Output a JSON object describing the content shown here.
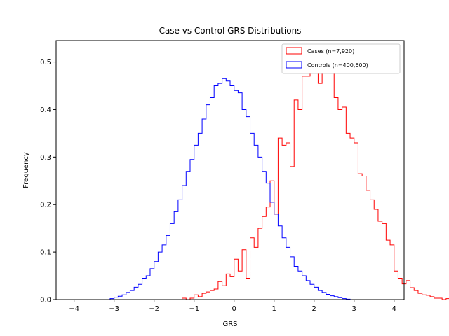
{
  "chart_data": {
    "type": "histogram",
    "title": "Case vs Control GRS Distributions",
    "xlabel": "GRS",
    "ylabel": "Frequency",
    "xlim": [
      -4.45,
      4.25
    ],
    "ylim": [
      0,
      0.545
    ],
    "x_ticks": [
      -4,
      -3,
      -2,
      -1,
      0,
      1,
      2,
      3,
      4
    ],
    "y_ticks": [
      0.0,
      0.1,
      0.2,
      0.3,
      0.4,
      0.5
    ],
    "x_tick_labels": [
      "−4",
      "−3",
      "−2",
      "−1",
      "0",
      "1",
      "2",
      "3",
      "4"
    ],
    "y_tick_labels": [
      "0.0",
      "0.1",
      "0.2",
      "0.3",
      "0.4",
      "0.5"
    ],
    "legend_position": "top-right",
    "series": [
      {
        "name": "Cases (n=7,920)",
        "color": "#ff0000",
        "bin_start": -4.0,
        "bin_width": 0.1,
        "values": [
          0,
          0,
          0,
          0,
          0,
          0,
          0,
          0,
          0,
          0,
          0,
          0,
          0,
          0,
          0,
          0,
          0,
          0,
          0,
          0,
          0,
          0,
          0,
          0,
          0,
          0,
          0,
          0.003,
          0,
          0.003,
          0.01,
          0.006,
          0.013,
          0.016,
          0.019,
          0.022,
          0.038,
          0.029,
          0.054,
          0.048,
          0.085,
          0.06,
          0.105,
          0.045,
          0.13,
          0.11,
          0.15,
          0.175,
          0.195,
          0.25,
          0.18,
          0.34,
          0.325,
          0.33,
          0.28,
          0.42,
          0.4,
          0.47,
          0.47,
          0.51,
          0.525,
          0.455,
          0.5,
          0.52,
          0.5,
          0.425,
          0.4,
          0.405,
          0.35,
          0.34,
          0.33,
          0.265,
          0.26,
          0.23,
          0.21,
          0.19,
          0.165,
          0.16,
          0.125,
          0.115,
          0.06,
          0.045,
          0.033,
          0.04,
          0.025,
          0.019,
          0.013,
          0.01,
          0.009,
          0.006,
          0.003,
          0.003,
          0,
          0.002,
          0
        ]
      },
      {
        "name": "Controls (n=400,600)",
        "color": "#0000ff",
        "bin_start": -4.0,
        "bin_width": 0.1,
        "values": [
          0,
          0,
          0,
          0,
          0,
          0,
          0,
          0,
          0,
          0.002,
          0.005,
          0.007,
          0.01,
          0.015,
          0.019,
          0.026,
          0.032,
          0.045,
          0.05,
          0.065,
          0.08,
          0.1,
          0.115,
          0.135,
          0.16,
          0.185,
          0.21,
          0.24,
          0.27,
          0.295,
          0.325,
          0.35,
          0.38,
          0.41,
          0.425,
          0.45,
          0.455,
          0.465,
          0.46,
          0.45,
          0.44,
          0.435,
          0.4,
          0.385,
          0.35,
          0.325,
          0.3,
          0.27,
          0.245,
          0.205,
          0.18,
          0.155,
          0.13,
          0.11,
          0.09,
          0.07,
          0.06,
          0.05,
          0.04,
          0.032,
          0.026,
          0.019,
          0.015,
          0.011,
          0.008,
          0.006,
          0.004,
          0.002,
          0.001,
          0,
          0,
          0,
          0,
          0,
          0,
          0,
          0,
          0,
          0,
          0
        ]
      }
    ]
  }
}
